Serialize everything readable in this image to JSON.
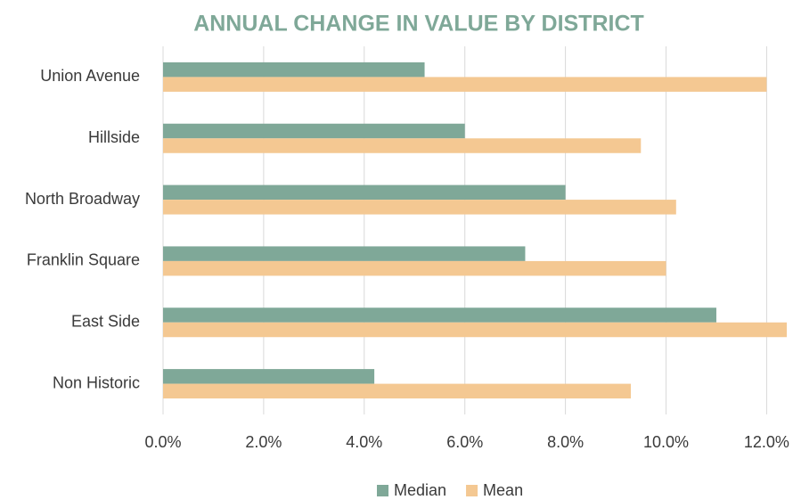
{
  "chart_data": {
    "type": "bar",
    "orientation": "horizontal",
    "title": "ANNUAL CHANGE IN VALUE BY DISTRICT",
    "categories": [
      "Union Avenue",
      "Hillside",
      "North Broadway",
      "Franklin Square",
      "East Side",
      "Non Historic"
    ],
    "series": [
      {
        "name": "Median",
        "color": "#7fa898",
        "values": [
          5.2,
          6.0,
          8.0,
          7.2,
          11.0,
          4.2
        ]
      },
      {
        "name": "Mean",
        "color": "#f4c892",
        "values": [
          12.0,
          9.5,
          10.2,
          10.0,
          12.4,
          9.3
        ]
      }
    ],
    "xlim": [
      0,
      12.4
    ],
    "xticks": [
      {
        "value": 0,
        "label": "0.0%"
      },
      {
        "value": 2,
        "label": "2.0%"
      },
      {
        "value": 4,
        "label": "4.0%"
      },
      {
        "value": 6,
        "label": "6.0%"
      },
      {
        "value": 8,
        "label": "8.0%"
      },
      {
        "value": 10,
        "label": "10.0%"
      },
      {
        "value": 12,
        "label": "12.0%"
      }
    ],
    "grid": true,
    "legend": "bottom"
  }
}
